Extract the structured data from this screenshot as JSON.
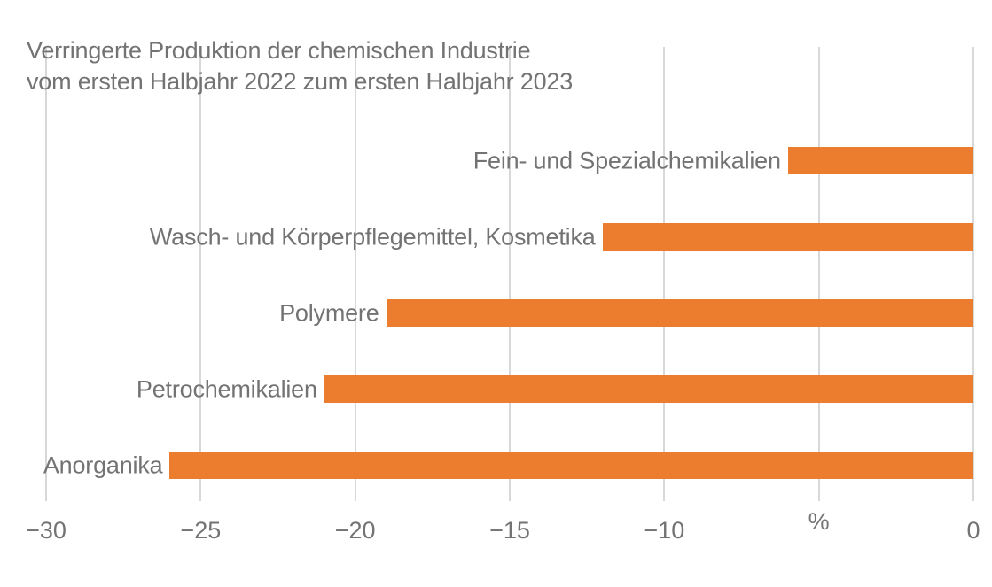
{
  "chart_data": {
    "type": "bar",
    "orientation": "horizontal",
    "title": "Verringerte Produktion der chemischen Industrie vom ersten Halbjahr 2022 zum ersten Halbjahr 2023",
    "title_lines": [
      "Verringerte Produktion der chemischen Industrie",
      "vom ersten Halbjahr 2022 zum ersten Halbjahr 2023"
    ],
    "categories": [
      "Fein- und Spezialchemikalien",
      "Wasch- und Körperpflegemittel, Kosmetika",
      "Polymere",
      "Petrochemikalien",
      "Anorganika"
    ],
    "values": [
      -6,
      -12,
      -19,
      -21,
      -26
    ],
    "unit": "%",
    "xlabel": "",
    "ylabel": "",
    "xlim": [
      -30,
      0
    ],
    "grid": true,
    "legend": null,
    "xticks": [
      {
        "value": -30,
        "label": "−30",
        "is_unit": false
      },
      {
        "value": -25,
        "label": "−25",
        "is_unit": false
      },
      {
        "value": -20,
        "label": "−20",
        "is_unit": false
      },
      {
        "value": -15,
        "label": "−15",
        "is_unit": false
      },
      {
        "value": -10,
        "label": "−10",
        "is_unit": false
      },
      {
        "value": -5,
        "label": "%",
        "is_unit": true
      },
      {
        "value": 0,
        "label": "0",
        "is_unit": false
      }
    ],
    "colors": {
      "bar": "#EC7D2F",
      "grid": "#D8D8D8",
      "text": "#737373",
      "background": "#FFFFFF"
    }
  }
}
